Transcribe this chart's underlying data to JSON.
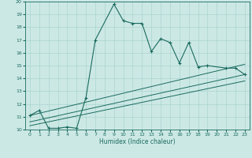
{
  "xlabel": "Humidex (Indice chaleur)",
  "xlim": [
    -0.5,
    23.5
  ],
  "ylim": [
    10,
    20
  ],
  "xticks": [
    0,
    1,
    2,
    3,
    4,
    5,
    6,
    7,
    8,
    9,
    10,
    11,
    12,
    13,
    14,
    15,
    16,
    17,
    18,
    19,
    20,
    21,
    22,
    23
  ],
  "yticks": [
    10,
    11,
    12,
    13,
    14,
    15,
    16,
    17,
    18,
    19,
    20
  ],
  "bg_color": "#cce8e5",
  "line_color": "#1a6b5e",
  "grid_color": "#aad4cf",
  "main_line_segments": [
    {
      "x": [
        0,
        1,
        2,
        3,
        4,
        5,
        6,
        7,
        9,
        10,
        11,
        12,
        13,
        14,
        15,
        16,
        17,
        18,
        19,
        21,
        22,
        23
      ],
      "y": [
        11.1,
        11.5,
        10.1,
        10.1,
        10.2,
        10.1,
        12.5,
        17.0,
        19.8,
        18.5,
        18.3,
        18.3,
        16.1,
        17.1,
        16.8,
        15.2,
        16.8,
        14.9,
        15.0,
        14.8,
        14.8,
        14.3
      ]
    }
  ],
  "trend_lines": [
    {
      "x": [
        0,
        23
      ],
      "y": [
        10.3,
        13.8
      ]
    },
    {
      "x": [
        0,
        23
      ],
      "y": [
        10.6,
        14.3
      ]
    },
    {
      "x": [
        0,
        23
      ],
      "y": [
        11.1,
        15.1
      ]
    }
  ]
}
